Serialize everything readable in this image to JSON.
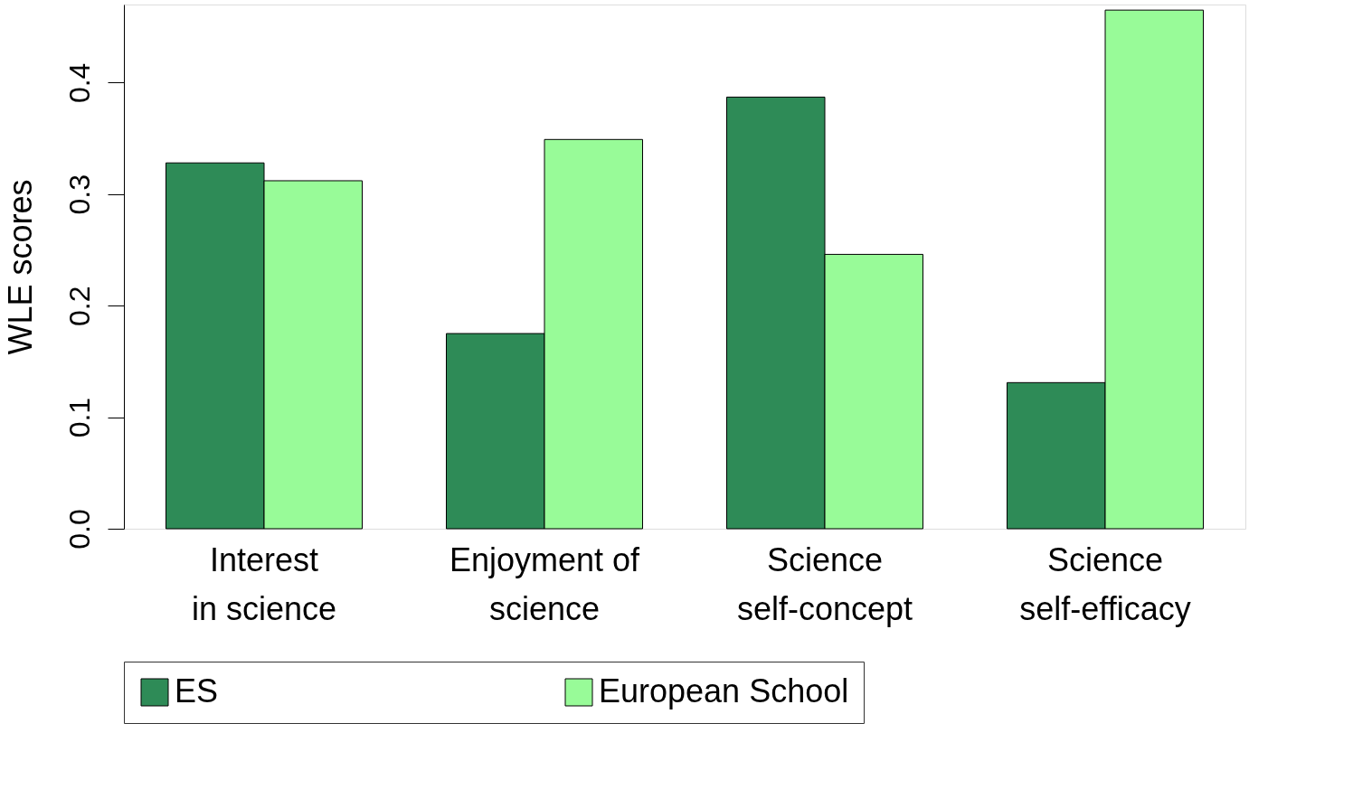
{
  "chart_data": {
    "type": "bar",
    "ylabel": "WLE scores",
    "categories": [
      "Interest\nin science",
      "Enjoyment of\nscience",
      "Science\nself-concept",
      "Science\nself-efficacy"
    ],
    "series": [
      {
        "name": "ES",
        "color": "#2e8b57",
        "values": [
          0.328,
          0.175,
          0.387,
          0.131
        ]
      },
      {
        "name": "European School",
        "color": "#98fb98",
        "values": [
          0.312,
          0.349,
          0.246,
          0.465
        ]
      }
    ],
    "ylim": [
      0,
      0.47
    ],
    "yticks": [
      {
        "value": 0,
        "label": "0.0"
      },
      0.1,
      0.2,
      0.3,
      0.4
    ],
    "grid": false,
    "legend": "bottom"
  }
}
